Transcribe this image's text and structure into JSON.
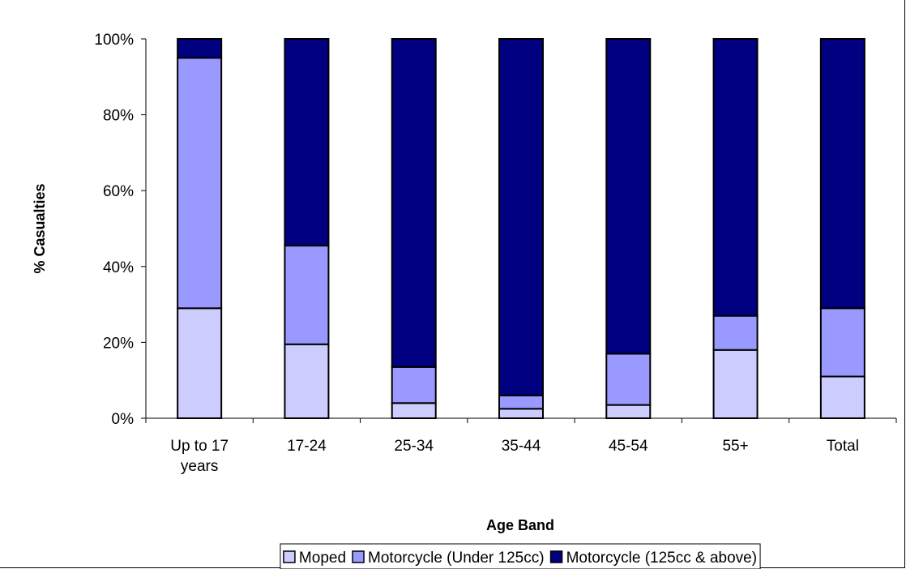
{
  "chart_data": {
    "type": "bar",
    "stacked": true,
    "percent_stacked": true,
    "categories": [
      [
        "Up to 17",
        "years"
      ],
      [
        "17-24"
      ],
      [
        "25-34"
      ],
      [
        "35-44"
      ],
      [
        "45-54"
      ],
      [
        "55+"
      ],
      [
        "Total"
      ]
    ],
    "series": [
      {
        "name": "Moped",
        "color": "#ccccff",
        "values": [
          29,
          19.5,
          4,
          2.5,
          3.5,
          18,
          11
        ]
      },
      {
        "name": "Motorcycle (Under 125cc)",
        "color": "#9999ff",
        "values": [
          66,
          26,
          9.5,
          3.5,
          13.5,
          9,
          18
        ]
      },
      {
        "name": "Motorcycle (125cc & above)",
        "color": "#000080",
        "values": [
          5,
          54.5,
          86.5,
          94,
          83,
          73,
          71
        ]
      }
    ],
    "xlabel": "Age Band",
    "ylabel": "% Casualties",
    "ylim": [
      0,
      100
    ],
    "yticks": [
      "0%",
      "20%",
      "40%",
      "60%",
      "80%",
      "100%"
    ],
    "legend_position": "bottom"
  }
}
